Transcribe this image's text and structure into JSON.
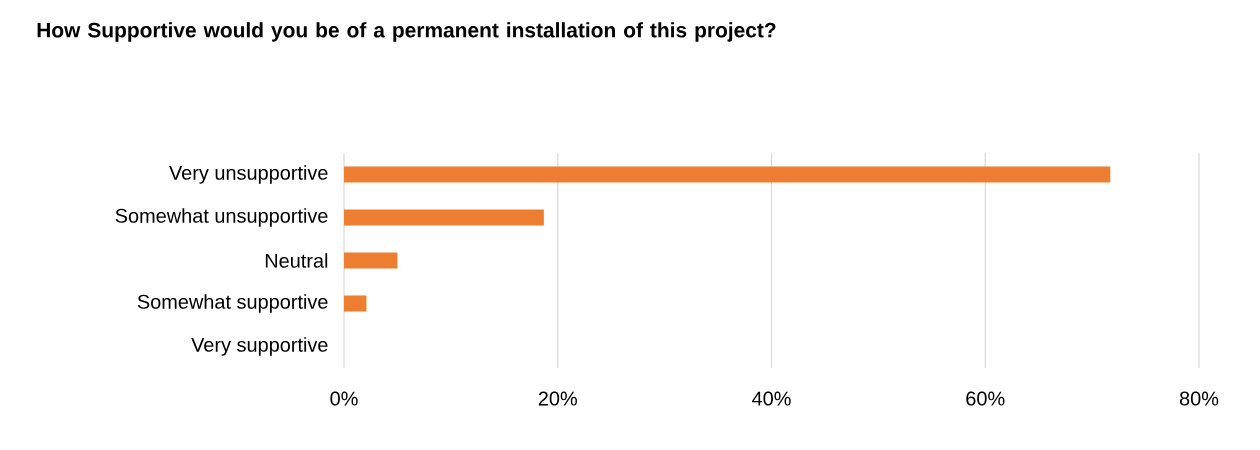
{
  "chart_data": {
    "type": "bar",
    "orientation": "horizontal",
    "title": "How Supportive would you be of a permanent installation of this project?",
    "categories": [
      "Very unsupportive",
      "Somewhat unsupportive",
      "Neutral",
      "Somewhat supportive",
      "Very supportive"
    ],
    "values": [
      71.7,
      18.7,
      5.0,
      2.1,
      0
    ],
    "color": "#ed7d31",
    "xlim": [
      0,
      80
    ],
    "xticks": [
      {
        "value": 0,
        "label": "0%"
      },
      {
        "value": 20,
        "label": "20%"
      },
      {
        "value": 40,
        "label": "40%"
      },
      {
        "value": 60,
        "label": "60%"
      },
      {
        "value": 80,
        "label": "80%"
      }
    ],
    "grid": "x"
  }
}
